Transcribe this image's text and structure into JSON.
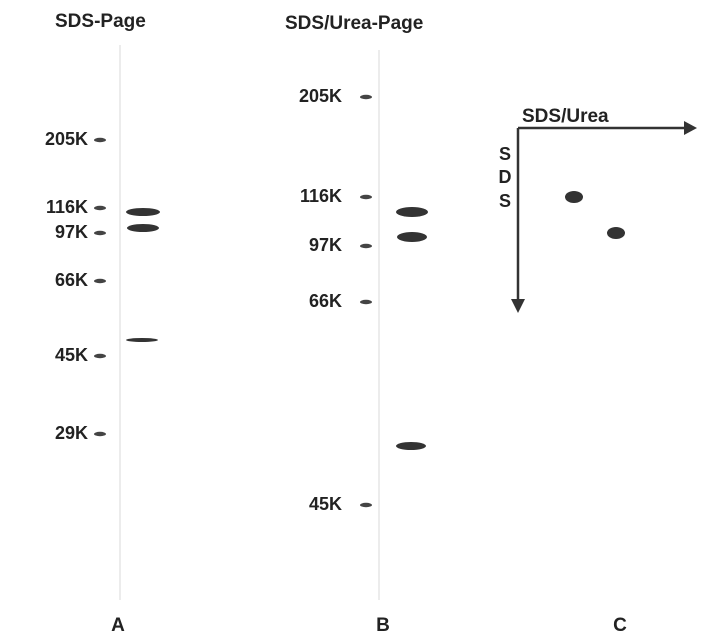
{
  "panel_a": {
    "title": "SDS-Page",
    "markers": [
      "205K",
      "116K",
      "97K",
      "66K",
      "45K",
      "29K"
    ],
    "letter": "A"
  },
  "panel_b": {
    "title": "SDS/Urea-Page",
    "markers": [
      "205K",
      "116K",
      "97K",
      "66K",
      "45K"
    ],
    "letter": "B"
  },
  "panel_c": {
    "axis_label": "SDS/Urea",
    "vertical_label": [
      "S",
      "D",
      "S"
    ],
    "letter": "C"
  }
}
